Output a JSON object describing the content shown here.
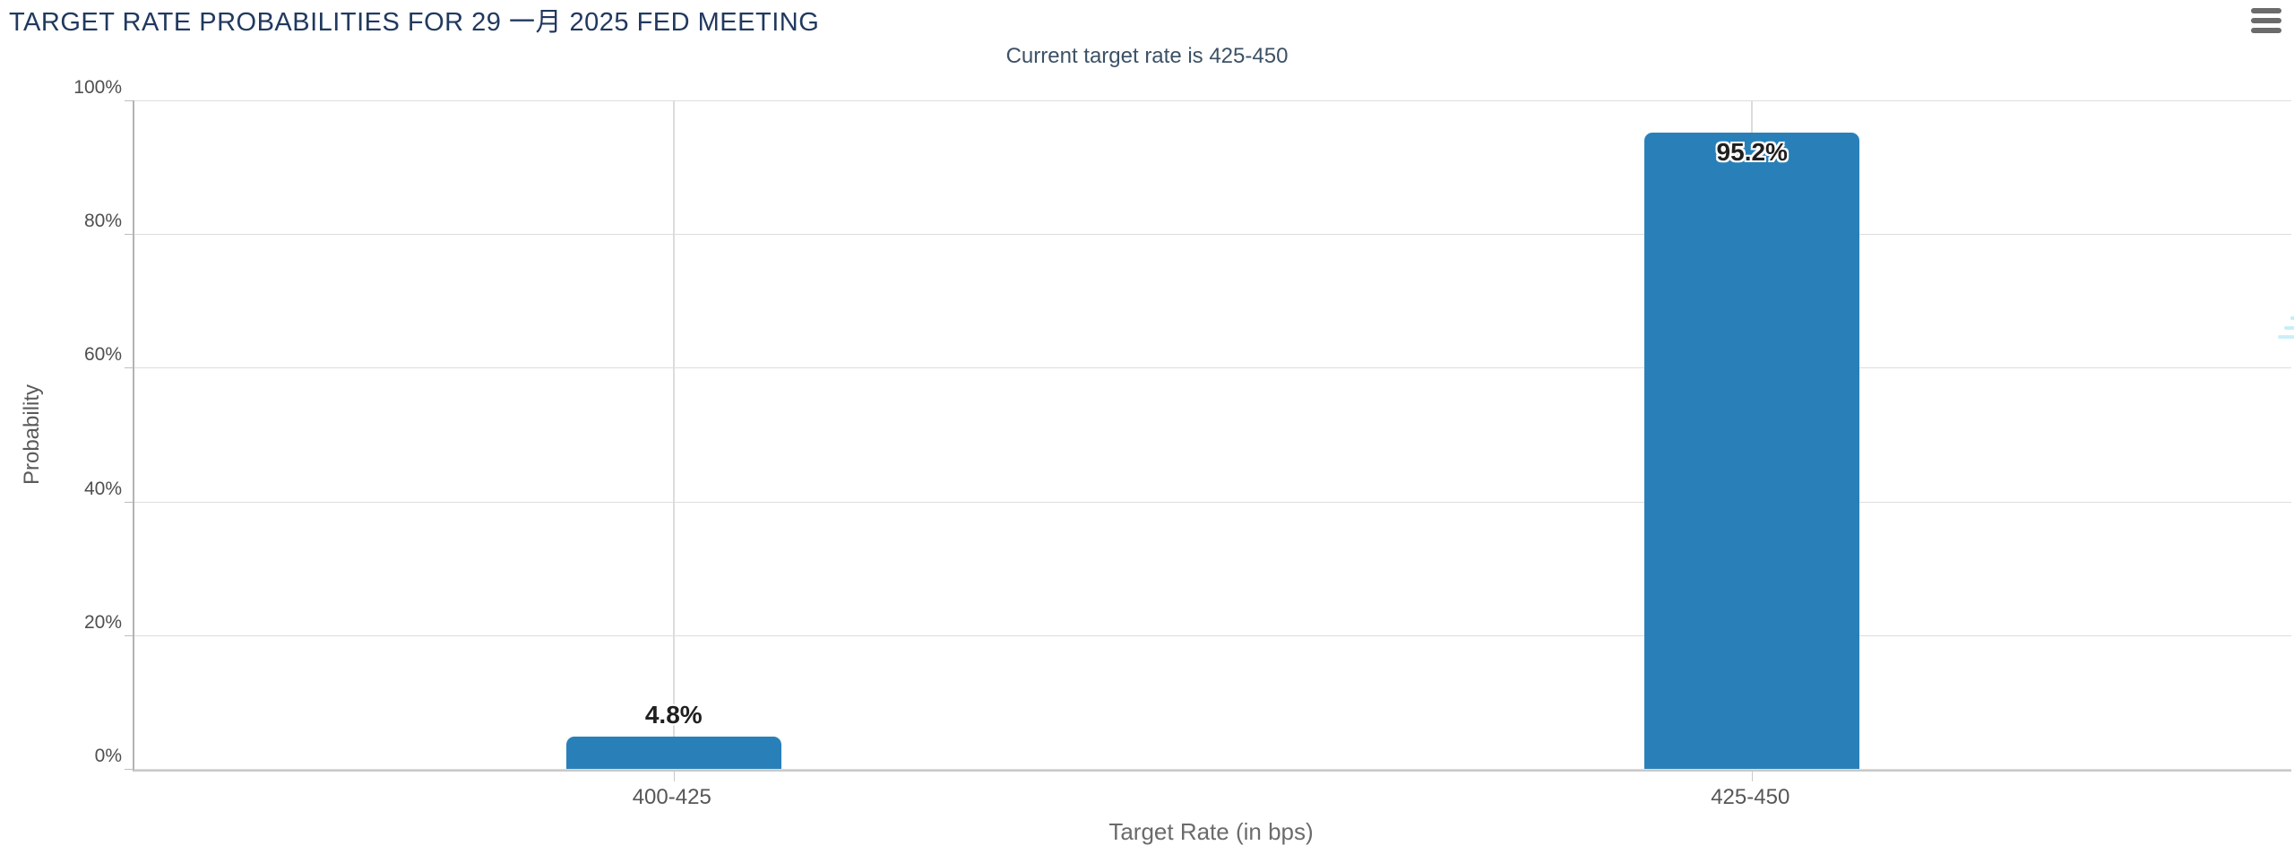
{
  "page": {
    "background": "#ffffff",
    "menu_button": {
      "icon": "hamburger-menu-icon",
      "color": "#6b6b6b"
    },
    "watermark": {
      "letter": "Q",
      "letter_color": "#c8c8c8",
      "stripe_color": "#8ddcee"
    }
  },
  "chart_data": {
    "type": "bar",
    "title": "TARGET RATE PROBABILITIES FOR 29 一月 2025 FED MEETING",
    "subtitle": "Current target rate is 425-450",
    "current_target_rate": "425-450",
    "categories": [
      "400-425",
      "425-450"
    ],
    "values": [
      4.8,
      95.2
    ],
    "value_labels": [
      "4.8%",
      "95.2%"
    ],
    "xlabel": "Target Rate (in bps)",
    "ylabel": "Probability",
    "ylim": [
      0,
      100
    ],
    "yticks": [
      0,
      20,
      40,
      60,
      80,
      100
    ],
    "ytick_labels": [
      "0%",
      "20%",
      "40%",
      "60%",
      "80%",
      "100%"
    ],
    "grid": true,
    "legend_position": "none",
    "bar_color": "#2980b9"
  },
  "colors": {
    "title": "#21395f",
    "subtitle": "#3c5166",
    "tick_label": "#4f4f4f",
    "axis_title": "#5a5a5a",
    "gridline": "#dddddd",
    "axis_line": "#b3b3b3",
    "bar": "#2980b9",
    "value_label": "#1f1f1f"
  }
}
